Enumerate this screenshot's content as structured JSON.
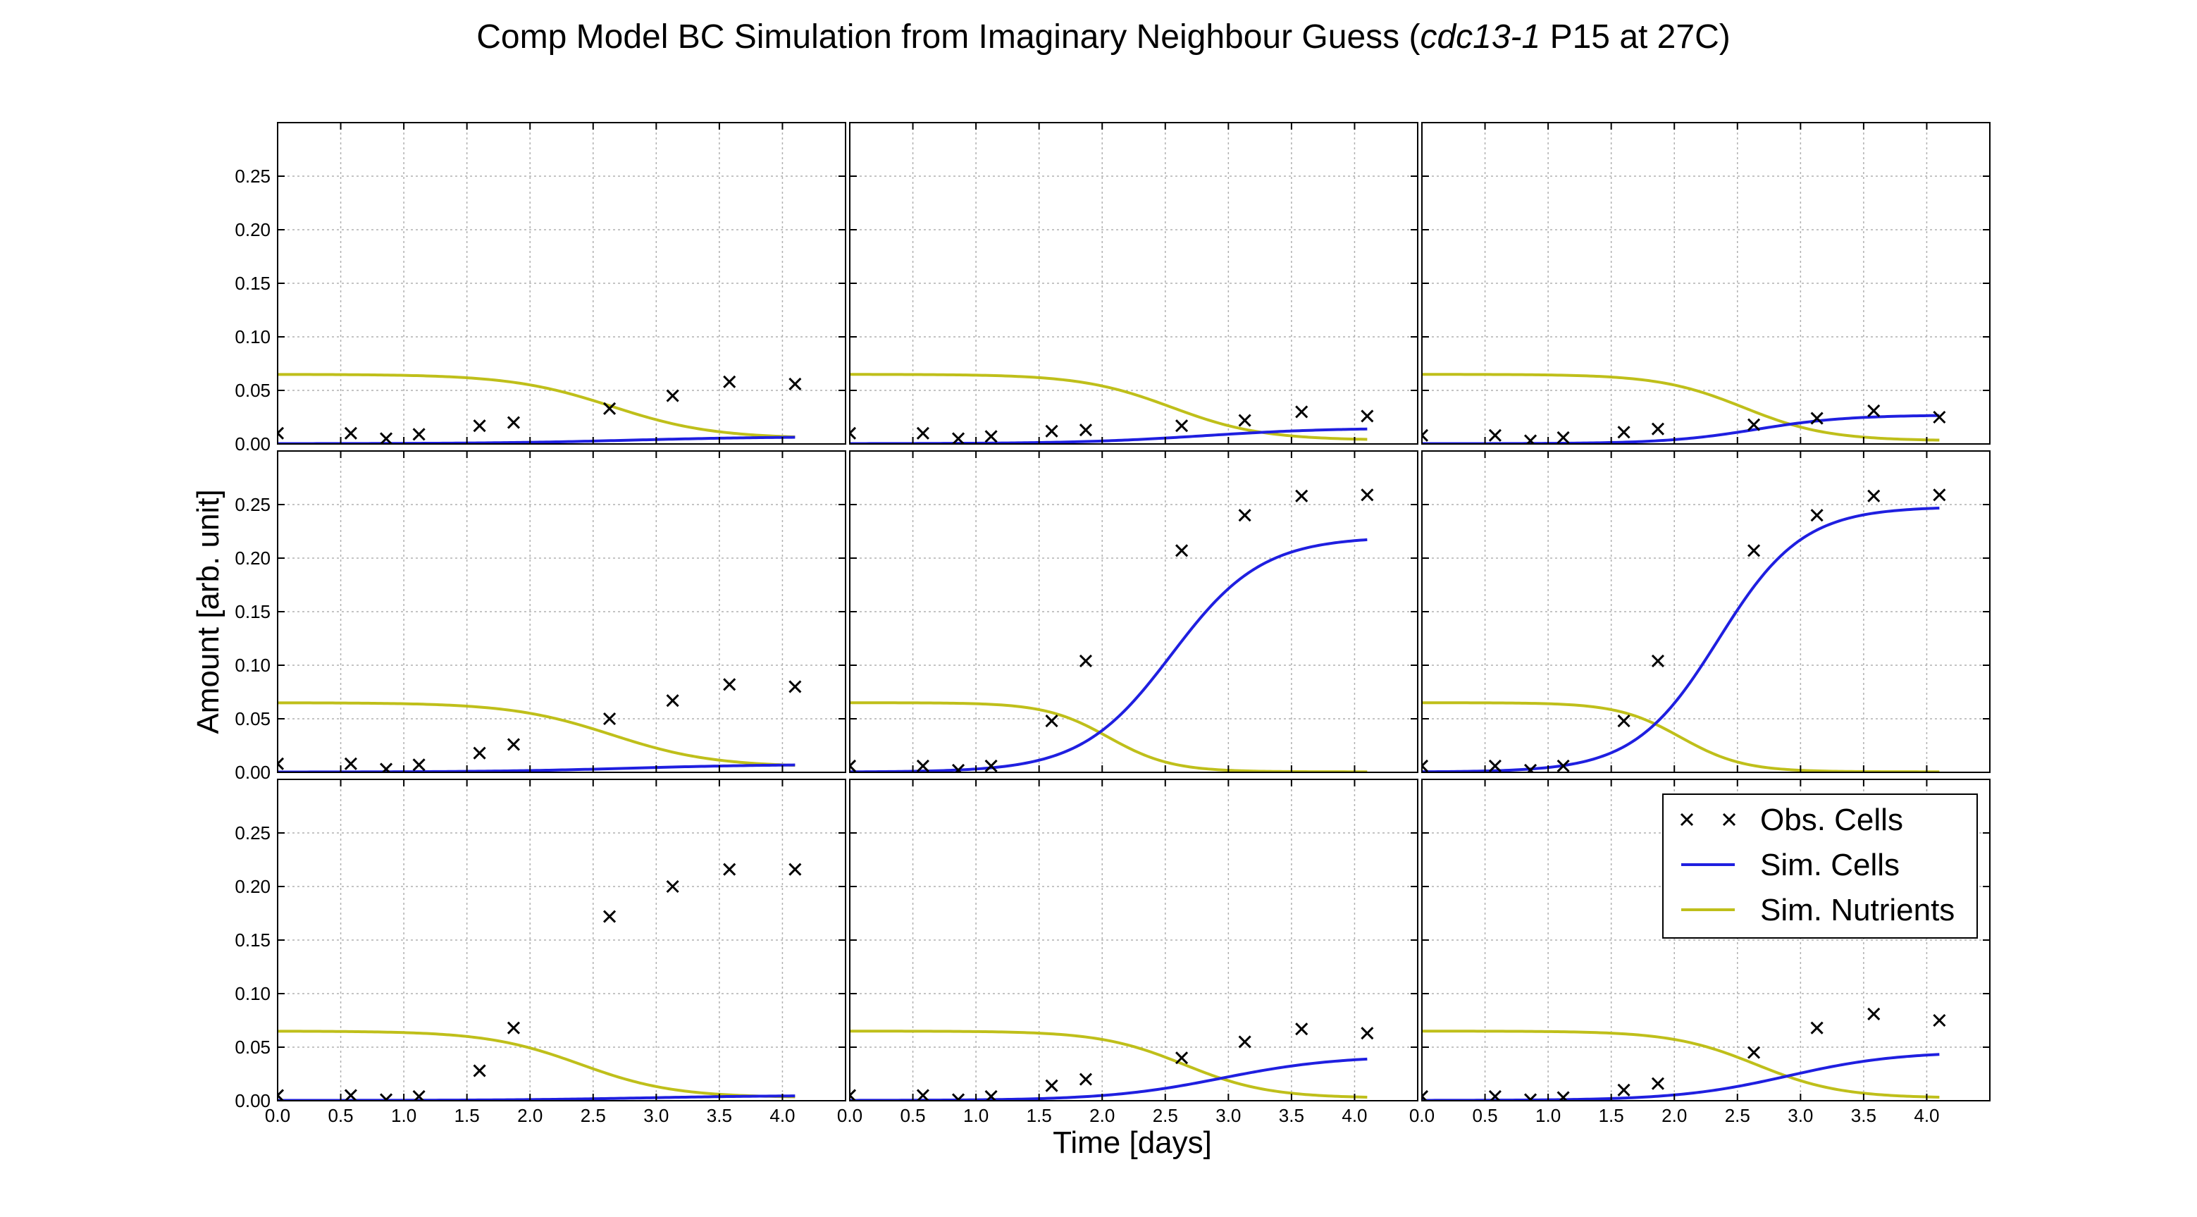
{
  "chart_data": {
    "type": "line",
    "title": {
      "prefix": "Comp Model BC Simulation from Imaginary Neighbour Guess (",
      "italic": "cdc13-1",
      "suffix": " P15 at 27C)"
    },
    "xlabel": "Time [days]",
    "ylabel": "Amount [arb. unit]",
    "xlim": [
      0,
      4.5
    ],
    "ylim": [
      0,
      0.3
    ],
    "xticks": [
      "0.0",
      "0.5",
      "1.0",
      "1.5",
      "2.0",
      "2.5",
      "3.0",
      "3.5",
      "4.0"
    ],
    "yticks": [
      "0.00",
      "0.05",
      "0.10",
      "0.15",
      "0.20",
      "0.25"
    ],
    "grid": true,
    "layout": "3x3 panels, shared axes",
    "legend": {
      "placement": "upper-right of bottom-right panel",
      "entries": [
        "Obs. Cells",
        "Sim. Cells",
        "Sim. Nutrients"
      ]
    },
    "colors": {
      "obs_cells": "#000000",
      "sim_cells": "#1f1fe0",
      "sim_nutrients": "#bfbf1a",
      "grid": "#b0b0b0",
      "frame": "#000000"
    },
    "observation_times": [
      0.0,
      0.58,
      0.86,
      1.12,
      1.6,
      1.87,
      2.63,
      3.13,
      3.58,
      4.1
    ],
    "panels": [
      {
        "row": 1,
        "col": 1,
        "obs_cells": [
          0.01,
          0.01,
          0.005,
          0.009,
          0.017,
          0.02,
          0.033,
          0.045,
          0.058,
          0.056
        ],
        "sim_cells": {
          "initial": 0.0003,
          "final": 0.0068,
          "mid_time": 2.8,
          "steepness": 1.8
        },
        "sim_nutrients": {
          "initial": 0.065,
          "final": 0.005,
          "mid_time": 2.65,
          "steepness": 2.5
        }
      },
      {
        "row": 1,
        "col": 2,
        "obs_cells": [
          0.01,
          0.01,
          0.005,
          0.007,
          0.012,
          0.013,
          0.017,
          0.022,
          0.03,
          0.026
        ],
        "sim_cells": {
          "initial": 0.0003,
          "final": 0.015,
          "mid_time": 2.8,
          "steepness": 2.0
        },
        "sim_nutrients": {
          "initial": 0.065,
          "final": 0.0035,
          "mid_time": 2.55,
          "steepness": 2.8
        }
      },
      {
        "row": 1,
        "col": 3,
        "obs_cells": [
          0.008,
          0.008,
          0.003,
          0.006,
          0.011,
          0.014,
          0.018,
          0.024,
          0.031,
          0.025
        ],
        "sim_cells": {
          "initial": 0.0003,
          "final": 0.027,
          "mid_time": 2.65,
          "steepness": 2.8
        },
        "sim_nutrients": {
          "initial": 0.065,
          "final": 0.003,
          "mid_time": 2.55,
          "steepness": 3.0
        }
      },
      {
        "row": 2,
        "col": 1,
        "obs_cells": [
          0.008,
          0.008,
          0.003,
          0.007,
          0.018,
          0.026,
          0.05,
          0.067,
          0.082,
          0.08
        ],
        "sim_cells": {
          "initial": 0.0003,
          "final": 0.0075,
          "mid_time": 2.8,
          "steepness": 1.8
        },
        "sim_nutrients": {
          "initial": 0.065,
          "final": 0.005,
          "mid_time": 2.65,
          "steepness": 2.5
        }
      },
      {
        "row": 2,
        "col": 2,
        "obs_cells": [
          0.006,
          0.006,
          0.002,
          0.006,
          0.048,
          0.104,
          0.207,
          0.24,
          0.258,
          0.259
        ],
        "sim_cells": {
          "initial": 0.0003,
          "final": 0.22,
          "mid_time": 2.55,
          "steepness": 2.8
        },
        "sim_nutrients": {
          "initial": 0.065,
          "final": 0.0005,
          "mid_time": 2.05,
          "steepness": 4.0
        }
      },
      {
        "row": 2,
        "col": 3,
        "obs_cells": [
          0.006,
          0.006,
          0.002,
          0.006,
          0.048,
          0.104,
          0.207,
          0.24,
          0.258,
          0.259
        ],
        "sim_cells": {
          "initial": 0.0003,
          "final": 0.248,
          "mid_time": 2.35,
          "steepness": 3.0
        },
        "sim_nutrients": {
          "initial": 0.065,
          "final": 0.0005,
          "mid_time": 2.05,
          "steepness": 4.0
        }
      },
      {
        "row": 3,
        "col": 1,
        "obs_cells": [
          0.005,
          0.005,
          0.001,
          0.004,
          0.028,
          0.068,
          0.172,
          0.2,
          0.216,
          0.216
        ],
        "sim_cells": {
          "initial": 0.0003,
          "final": 0.005,
          "mid_time": 2.9,
          "steepness": 1.8
        },
        "sim_nutrients": {
          "initial": 0.065,
          "final": 0.003,
          "mid_time": 2.4,
          "steepness": 2.7
        }
      },
      {
        "row": 3,
        "col": 2,
        "obs_cells": [
          0.005,
          0.005,
          0.001,
          0.004,
          0.014,
          0.02,
          0.04,
          0.055,
          0.067,
          0.063
        ],
        "sim_cells": {
          "initial": 0.0003,
          "final": 0.042,
          "mid_time": 2.95,
          "steepness": 2.2
        },
        "sim_nutrients": {
          "initial": 0.065,
          "final": 0.0025,
          "mid_time": 2.65,
          "steepness": 3.0
        }
      },
      {
        "row": 3,
        "col": 3,
        "obs_cells": [
          0.004,
          0.004,
          0.001,
          0.003,
          0.01,
          0.016,
          0.045,
          0.068,
          0.081,
          0.075
        ],
        "sim_cells": {
          "initial": 0.0003,
          "final": 0.046,
          "mid_time": 2.9,
          "steepness": 2.3
        },
        "sim_nutrients": {
          "initial": 0.065,
          "final": 0.0025,
          "mid_time": 2.65,
          "steepness": 3.0
        }
      }
    ]
  }
}
